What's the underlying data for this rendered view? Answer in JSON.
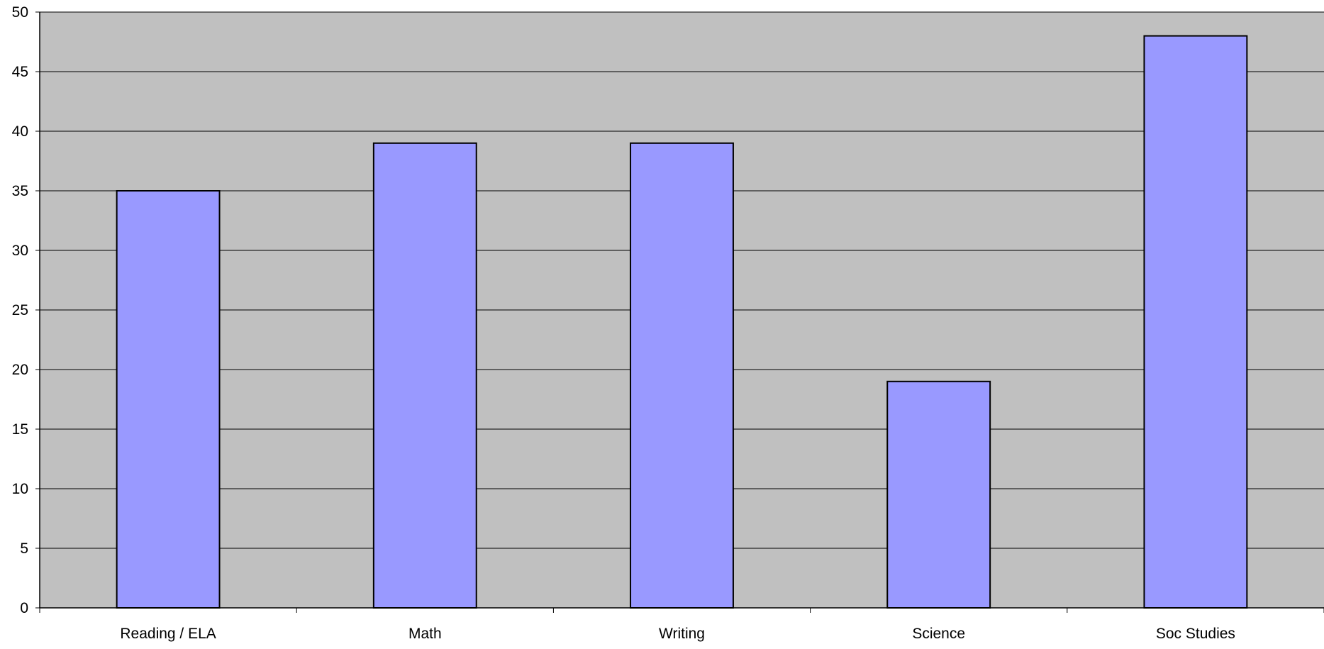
{
  "chart_data": {
    "type": "bar",
    "categories": [
      "Reading / ELA",
      "Math",
      "Writing",
      "Science",
      "Soc Studies"
    ],
    "values": [
      35,
      39,
      39,
      19,
      48
    ],
    "title": "",
    "xlabel": "",
    "ylabel": "",
    "ylim": [
      0,
      50
    ],
    "yticks": [
      0,
      5,
      10,
      15,
      20,
      25,
      30,
      35,
      40,
      45,
      50
    ],
    "grid": true,
    "legend": "none",
    "colors": {
      "plot_background": "#c0c0c0",
      "bar_fill": "#9999ff",
      "bar_stroke": "#000000",
      "gridline": "#000000"
    }
  }
}
